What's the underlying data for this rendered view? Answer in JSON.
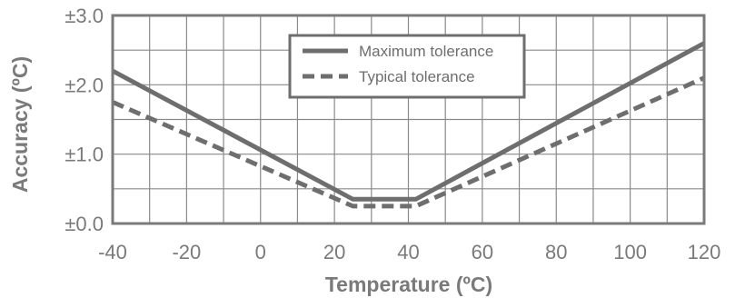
{
  "chart_data": {
    "type": "line",
    "title": "",
    "xlabel": "Temperature (ºC)",
    "ylabel": "Accuracy (ºC)",
    "xlim": [
      -40,
      120
    ],
    "ylim": [
      0,
      3
    ],
    "x_ticks": [
      -40,
      -20,
      0,
      20,
      40,
      60,
      80,
      100,
      120
    ],
    "x_tick_labels": [
      "-40",
      "-20",
      "0",
      "20",
      "40",
      "60",
      "80",
      "100",
      "120"
    ],
    "y_ticks": [
      0,
      1,
      2,
      3
    ],
    "y_tick_labels": [
      "±0.0",
      "±1.0",
      "±2.0",
      "±3.0"
    ],
    "grid": true,
    "legend_position": "top-center",
    "series": [
      {
        "name": "Maximum tolerance",
        "style": "solid",
        "color": "#6e6e6e",
        "x": [
          -40,
          25,
          42,
          120
        ],
        "y": [
          2.2,
          0.35,
          0.35,
          2.6
        ]
      },
      {
        "name": "Typical tolerance",
        "style": "dashed",
        "color": "#6e6e6e",
        "x": [
          -40,
          25,
          42,
          120
        ],
        "y": [
          1.75,
          0.25,
          0.25,
          2.1
        ]
      }
    ]
  }
}
